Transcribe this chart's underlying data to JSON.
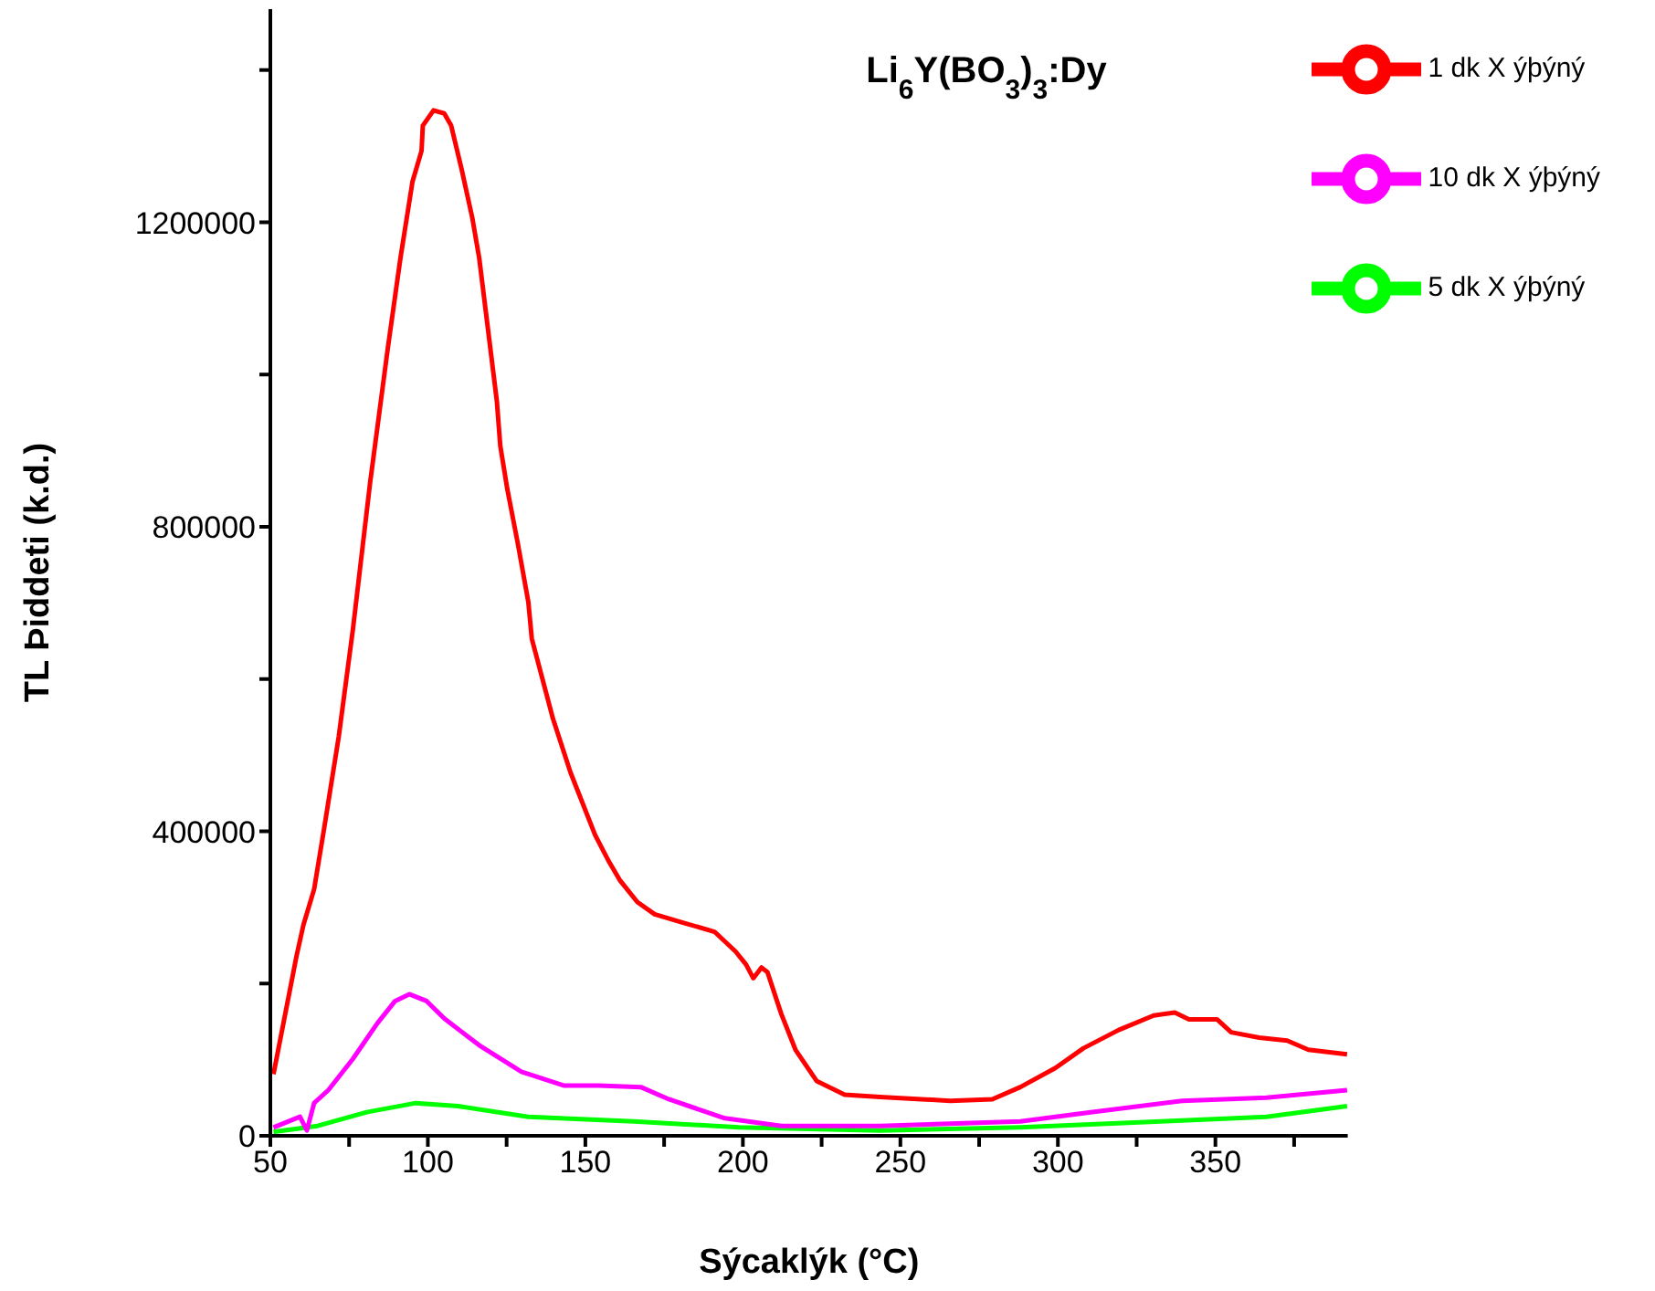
{
  "chart_data": {
    "type": "line",
    "title": "Li$_{6}$Y(BO$_{3}$)$_{3}$:Dy",
    "xlabel": "Sýcaklýk (°C)",
    "ylabel": "TL Þiddeti (k.d.)",
    "xlim": [
      50,
      392
    ],
    "ylim": [
      0,
      1480000
    ],
    "xticks": [
      50,
      {
        "value": 75,
        "label": null
      },
      100,
      {
        "value": 125,
        "label": null
      },
      150,
      {
        "value": 175,
        "label": null
      },
      200,
      {
        "value": 225,
        "label": null
      },
      250,
      {
        "value": 275,
        "label": null
      },
      300,
      {
        "value": 325,
        "label": null
      },
      350,
      {
        "value": 375,
        "label": null
      }
    ],
    "yticks": [
      0,
      {
        "value": 200000,
        "label": null
      },
      400000,
      {
        "value": 600000,
        "label": null
      },
      800000,
      {
        "value": 1000000,
        "label": null
      },
      1200000,
      {
        "value": 1400000,
        "label": null
      }
    ],
    "grid": false,
    "legend": "top right",
    "marker": "none",
    "line_style": "solid",
    "series": [
      {
        "name": "1 dk X ýþýný",
        "color": "#ff0000",
        "x": [
          51,
          58.3,
          60.5,
          63.9,
          67.2,
          71.7,
          76.2,
          81.7,
          87.3,
          91.3,
          95.1,
          98,
          98.4,
          101.8,
          105.2,
          107.4,
          110.7,
          114.1,
          116.3,
          121.9,
          123,
          125.2,
          128.6,
          131.9,
          133,
          139.7,
          145.3,
          153.1,
          157.5,
          160.9,
          166.5,
          172,
          181,
          191,
          197.7,
          201,
          203.3,
          205.9,
          207.8,
          212.2,
          216.7,
          223.4,
          232.3,
          243.5,
          265.8,
          279.2,
          288.1,
          299.2,
          308.1,
          319.3,
          330.4,
          337.1,
          341.6,
          350.5,
          355,
          363.9,
          372.8,
          379.5,
          391.8
        ],
        "values": [
          81000,
          236000,
          277000,
          324000,
          407000,
          524000,
          665000,
          859000,
          1035000,
          1153000,
          1253000,
          1294000,
          1327000,
          1347000,
          1343000,
          1327000,
          1270000,
          1206000,
          1153000,
          965000,
          906000,
          850000,
          777000,
          701000,
          653000,
          548000,
          477000,
          395000,
          360000,
          336000,
          307000,
          291000,
          280000,
          268000,
          242000,
          225000,
          207000,
          221000,
          215000,
          160000,
          113000,
          72000,
          54000,
          51000,
          46000,
          48000,
          64000,
          89000,
          115000,
          139000,
          158000,
          162000,
          153000,
          153000,
          136000,
          129000,
          125000,
          113000,
          107000
        ]
      },
      {
        "name": "5 dk X ýþýný",
        "color": "#00ff00",
        "x": [
          51,
          65,
          80.6,
          96.2,
          109.6,
          131.9,
          165.4,
          198.8,
          243.5,
          288.1,
          332.7,
          366.2,
          391.8
        ],
        "values": [
          5000,
          13000,
          31000,
          43000,
          39000,
          25000,
          19000,
          11000,
          7000,
          11000,
          19000,
          25000,
          39000
        ]
      },
      {
        "name": "10 dk X ýþýný",
        "color": "#ff00ff",
        "x": [
          51,
          59.4,
          61.6,
          63.9,
          68.4,
          76.2,
          84,
          89.6,
          94.1,
          99.6,
          105.2,
          116.3,
          129.7,
          143.1,
          154.3,
          167.6,
          176.5,
          194.3,
          212.2,
          243.5,
          288.1,
          310.4,
          339.4,
          366.2,
          391.8
        ],
        "values": [
          11000,
          25000,
          7000,
          43000,
          60000,
          101000,
          148000,
          177000,
          186000,
          177000,
          154000,
          119000,
          84000,
          66000,
          66000,
          64000,
          48000,
          23000,
          13000,
          13000,
          19000,
          31000,
          46000,
          50000,
          60000
        ]
      }
    ]
  }
}
